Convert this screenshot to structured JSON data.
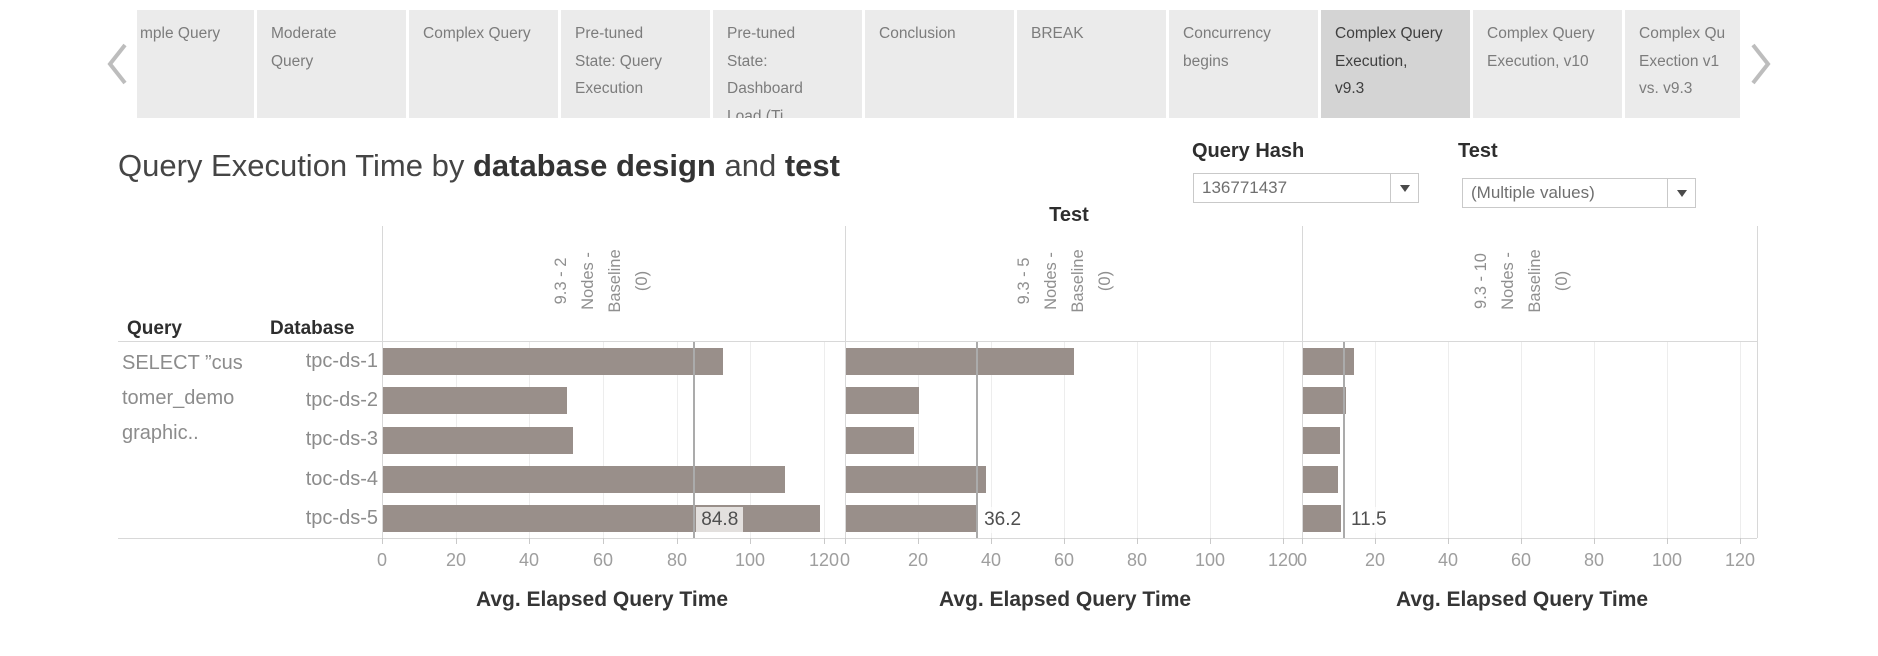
{
  "tabs": {
    "items": [
      {
        "label": "mple Query",
        "selected": false
      },
      {
        "label": "Moderate\nQuery",
        "selected": false
      },
      {
        "label": "Complex Query",
        "selected": false
      },
      {
        "label": "Pre-tuned\nState: Query\nExecution",
        "selected": false
      },
      {
        "label": "Pre-tuned\nState:\nDashboard\nLoad (Ti",
        "selected": false
      },
      {
        "label": "Conclusion",
        "selected": false
      },
      {
        "label": "BREAK",
        "selected": false
      },
      {
        "label": "Concurrency\nbegins",
        "selected": false
      },
      {
        "label": "Complex Query\nExecution,\nv9.3",
        "selected": true
      },
      {
        "label": "Complex Query\nExecution, v10",
        "selected": false
      },
      {
        "label": "Complex Qu\nExection v1\nvs. v9.3",
        "selected": false
      }
    ]
  },
  "title": {
    "part1": "Query Execution Time by ",
    "bold1": "database design",
    "part2": " and ",
    "bold2": "test"
  },
  "filters": {
    "query_hash": {
      "label": "Query Hash",
      "value": "136771437"
    },
    "test": {
      "label": "Test",
      "value": "(Multiple values)"
    }
  },
  "chart_data": {
    "type": "bar",
    "orientation": "horizontal",
    "column_field_header": "Test",
    "row_field_headers": {
      "query": "Query",
      "database": "Database"
    },
    "query_label_lines": [
      "SELECT ”cus",
      "tomer_demo",
      "graphic.."
    ],
    "categories": [
      "tpc-ds-1",
      "tpc-ds-2",
      "tpc-ds-3",
      "toc-ds-4",
      "tpc-ds-5"
    ],
    "x_ticks": [
      0,
      20,
      40,
      60,
      80,
      100,
      120
    ],
    "xlim": [
      0,
      120
    ],
    "axis_title": "Avg. Elapsed Query Time",
    "grid": true,
    "panels": [
      {
        "name": "9.3 - 2 Nodes - Baseline (0)",
        "header_lines": [
          "9.3 - 2",
          "Nodes -",
          "Baseline",
          "(0)"
        ],
        "values": [
          92.5,
          50.3,
          51.8,
          109.3,
          118.8
        ],
        "reference_value": 84.8,
        "reference_label": "84.8"
      },
      {
        "name": "9.3 - 5 Nodes - Baseline (0)",
        "header_lines": [
          "9.3 - 5",
          "Nodes -",
          "Baseline",
          "(0)"
        ],
        "values": [
          62.6,
          20.3,
          18.9,
          38.5,
          36.2
        ],
        "reference_value": 36.2,
        "reference_label": "36.2"
      },
      {
        "name": "9.3 - 10 Nodes - Baseline (0)",
        "header_lines": [
          "9.3 - 10",
          "Nodes -",
          "Baseline",
          "(0)"
        ],
        "values": [
          14.2,
          12.1,
          10.4,
          9.9,
          10.7
        ],
        "reference_value": 11.5,
        "reference_label": "11.5"
      }
    ]
  },
  "colors": {
    "bar": "#998f8a",
    "reference_line": "#ababab",
    "tab_bg": "#ebebeb",
    "selected_tab_bg": "#d4d4d4",
    "gridline": "#ededed",
    "pane_border": "#d8d8d8"
  }
}
